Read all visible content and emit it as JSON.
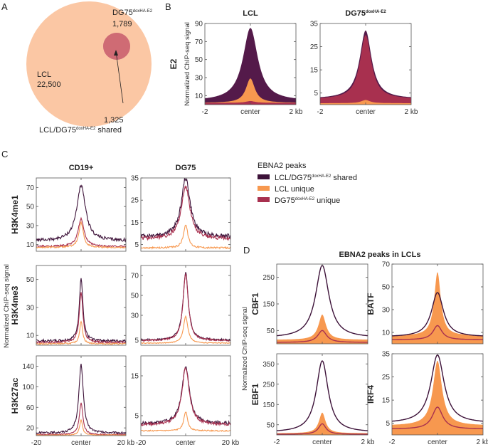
{
  "colors": {
    "shared": "#3d1239",
    "shared_fill": "#541a4a",
    "lcl_unique": "#f7984f",
    "dg75_unique": "#a8304f",
    "venn_lcl": "#fbc7a4",
    "venn_dg75": "#d48ea6",
    "venn_overlap": "#cf6b74"
  },
  "panels": {
    "A": {
      "letter": "A",
      "venn": {
        "dg75_label": "DG75",
        "dg75_sup": "doxHA-E2",
        "dg75_count": "1,789",
        "lcl_label": "LCL",
        "lcl_count": "22,500",
        "shared_count": "1,325",
        "shared_label_pre": "LCL/DG75",
        "shared_label_sup": "doxHA-E2",
        "shared_label_post": " shared"
      }
    },
    "B": {
      "letter": "B",
      "row_label": "E2",
      "ylabel": "Normalized ChIP-seq signal"
    },
    "C": {
      "letter": "C",
      "ylabel": "Normalized ChIP-seq signal"
    },
    "D": {
      "letter": "D",
      "title": "EBNA2 peaks in LCLs",
      "ylabel": "Normalized ChIP-seq signal"
    }
  },
  "legend": {
    "title": "EBNA2 peaks",
    "items": [
      {
        "pre": "LCL/DG75",
        "sup": "doxHA-E2",
        "post": " shared",
        "key": "shared"
      },
      {
        "pre": "LCL unique",
        "sup": "",
        "post": "",
        "key": "lcl_unique"
      },
      {
        "pre": "DG75",
        "sup": "doxHA-E2",
        "post": " unique",
        "key": "dg75_unique"
      }
    ]
  },
  "chart_data": [
    {
      "id": "B-LCL",
      "type": "area",
      "title": "LCL",
      "title_sup": "",
      "ylabel": "E2",
      "x": [
        "-2",
        "center",
        "2 kb"
      ],
      "xlim": [
        -2,
        2
      ],
      "ylim": [
        0,
        90
      ],
      "yticks": [
        10,
        30,
        50,
        70,
        90
      ],
      "series": [
        {
          "name": "LCL/DG75 shared",
          "key": "shared",
          "peak": 85,
          "base": 4,
          "width": 0.5
        },
        {
          "name": "LCL unique",
          "key": "lcl_unique",
          "peak": 29,
          "base": 2,
          "width": 0.3
        },
        {
          "name": "DG75 unique",
          "key": "dg75_unique",
          "peak": 4,
          "base": 2,
          "width": 0.3
        }
      ]
    },
    {
      "id": "B-DG75",
      "type": "area",
      "title": "DG75",
      "title_sup": "doxHA-E2",
      "ylabel": "",
      "x": [
        "-2",
        "center",
        "2 kb"
      ],
      "xlim": [
        -2,
        2
      ],
      "ylim": [
        0,
        35
      ],
      "yticks": [
        5,
        15,
        25,
        35
      ],
      "series": [
        {
          "name": "LCL/DG75 shared",
          "key": "shared",
          "peak": 32,
          "base": 2.5,
          "width": 0.4
        },
        {
          "name": "DG75 unique",
          "key": "dg75_unique",
          "peak": 30,
          "base": 2.3,
          "width": 0.38
        },
        {
          "name": "LCL unique",
          "key": "lcl_unique",
          "peak": 2,
          "base": 0.6,
          "width": 0.3
        }
      ]
    },
    {
      "id": "C-CD19-H3K4me1",
      "type": "line",
      "title": "CD19+",
      "row_label": "H3K4me1",
      "xlim": [
        -20,
        20
      ],
      "ylim": [
        3,
        80
      ],
      "yticks": [
        10,
        30,
        50,
        70
      ],
      "series": [
        {
          "key": "shared",
          "peak": 72,
          "base": 14,
          "width": 3
        },
        {
          "key": "dg75_unique",
          "peak": 37,
          "base": 8,
          "width": 2
        },
        {
          "key": "lcl_unique",
          "peak": 33,
          "base": 7,
          "width": 1.5
        }
      ]
    },
    {
      "id": "C-DG75-H3K4me1",
      "type": "line",
      "title": "DG75",
      "row_label": "",
      "xlim": [
        -20,
        20
      ],
      "ylim": [
        2,
        35
      ],
      "yticks": [
        5,
        15,
        25,
        35
      ],
      "series": [
        {
          "key": "shared",
          "peak": 35,
          "base": 8.5,
          "width": 3
        },
        {
          "key": "dg75_unique",
          "peak": 31,
          "base": 7.5,
          "width": 3
        },
        {
          "key": "lcl_unique",
          "peak": 14,
          "base": 3.5,
          "width": 1.5
        }
      ]
    },
    {
      "id": "C-CD19-H3K4me3",
      "type": "line",
      "title": "",
      "row_label": "H3K4me3",
      "xlim": [
        -20,
        20
      ],
      "ylim": [
        3,
        60
      ],
      "yticks": [
        10,
        30,
        50
      ],
      "series": [
        {
          "key": "shared",
          "peak": 51,
          "base": 6,
          "width": 1.2
        },
        {
          "key": "dg75_unique",
          "peak": 41,
          "base": 5,
          "width": 1.2
        },
        {
          "key": "lcl_unique",
          "peak": 20,
          "base": 4,
          "width": 1
        }
      ]
    },
    {
      "id": "C-DG75-H3K4me3",
      "type": "line",
      "title": "",
      "row_label": "",
      "xlim": [
        -20,
        20
      ],
      "ylim": [
        0,
        80
      ],
      "yticks": [
        5,
        30,
        50,
        70
      ],
      "series": [
        {
          "key": "shared",
          "peak": 73,
          "base": 5,
          "width": 1.8
        },
        {
          "key": "dg75_unique",
          "peak": 71,
          "base": 4.5,
          "width": 1.8
        },
        {
          "key": "lcl_unique",
          "peak": 29,
          "base": 2,
          "width": 1.5
        }
      ]
    },
    {
      "id": "C-CD19-H3K27ac",
      "type": "line",
      "title": "",
      "row_label": "H3K27ac",
      "xlim": [
        -20,
        20
      ],
      "ylim": [
        5,
        160
      ],
      "yticks": [
        20,
        60,
        100,
        140
      ],
      "series": [
        {
          "key": "shared",
          "peak": 143,
          "base": 10,
          "width": 1.5
        },
        {
          "key": "dg75_unique",
          "peak": 68,
          "base": 7,
          "width": 1.2
        },
        {
          "key": "lcl_unique",
          "peak": 35,
          "base": 6,
          "width": 1
        }
      ]
    },
    {
      "id": "C-DG75-H3K27ac",
      "type": "line",
      "title": "",
      "row_label": "",
      "xlim": [
        -20,
        20
      ],
      "ylim": [
        0,
        20
      ],
      "yticks": [
        5,
        15
      ],
      "series": [
        {
          "key": "shared",
          "peak": 17.5,
          "base": 3,
          "width": 2.5
        },
        {
          "key": "dg75_unique",
          "peak": 17,
          "base": 2.7,
          "width": 2.5
        },
        {
          "key": "lcl_unique",
          "peak": 6,
          "base": 1.2,
          "width": 1.3
        }
      ],
      "x": [
        "-20",
        "center",
        "20 kb"
      ]
    },
    {
      "id": "D-CBF1",
      "type": "line+area",
      "row_label": "CBF1",
      "xlim": [
        -2,
        2
      ],
      "ylim": [
        0,
        300
      ],
      "yticks": [
        50,
        150,
        250
      ],
      "series": [
        {
          "key": "shared",
          "peak": 295,
          "base": 22,
          "width": 0.45
        },
        {
          "key": "lcl_unique",
          "peak": 110,
          "base": 15,
          "width": 0.25,
          "filled": true
        },
        {
          "key": "dg75_unique",
          "peak": 50,
          "base": 5,
          "width": 0.3
        }
      ]
    },
    {
      "id": "D-BATF",
      "type": "line+area",
      "row_label": "BATF",
      "xlim": [
        -2,
        2
      ],
      "ylim": [
        0,
        70
      ],
      "yticks": [
        10,
        30,
        50,
        70
      ],
      "series": [
        {
          "key": "shared",
          "peak": 45,
          "base": 6,
          "width": 0.4
        },
        {
          "key": "lcl_unique",
          "peak": 63,
          "base": 7,
          "width": 0.22,
          "filled": true
        },
        {
          "key": "dg75_unique",
          "peak": 16,
          "base": 3.5,
          "width": 0.3
        }
      ]
    },
    {
      "id": "D-EBF1",
      "type": "line+area",
      "row_label": "EBF1",
      "xlim": [
        -2,
        2
      ],
      "ylim": [
        0,
        400
      ],
      "yticks": [
        50,
        150,
        250,
        350
      ],
      "series": [
        {
          "key": "shared",
          "peak": 365,
          "base": 12,
          "width": 0.4
        },
        {
          "key": "lcl_unique",
          "peak": 110,
          "base": 8,
          "width": 0.22,
          "filled": true
        },
        {
          "key": "dg75_unique",
          "peak": 55,
          "base": 3,
          "width": 0.25
        }
      ],
      "x": [
        "-2",
        "center",
        "2 kb"
      ]
    },
    {
      "id": "D-IRF4",
      "type": "line+area",
      "row_label": "IRF4",
      "xlim": [
        -2,
        2
      ],
      "ylim": [
        0,
        35
      ],
      "yticks": [
        5,
        15,
        25,
        35
      ],
      "series": [
        {
          "key": "shared",
          "peak": 34.5,
          "base": 5,
          "width": 0.45
        },
        {
          "key": "lcl_unique",
          "peak": 32,
          "base": 4,
          "width": 0.3,
          "filled": true
        },
        {
          "key": "dg75_unique",
          "peak": 12,
          "base": 2.5,
          "width": 0.35
        }
      ],
      "x": [
        "-2",
        "center",
        "2 kb"
      ]
    }
  ]
}
